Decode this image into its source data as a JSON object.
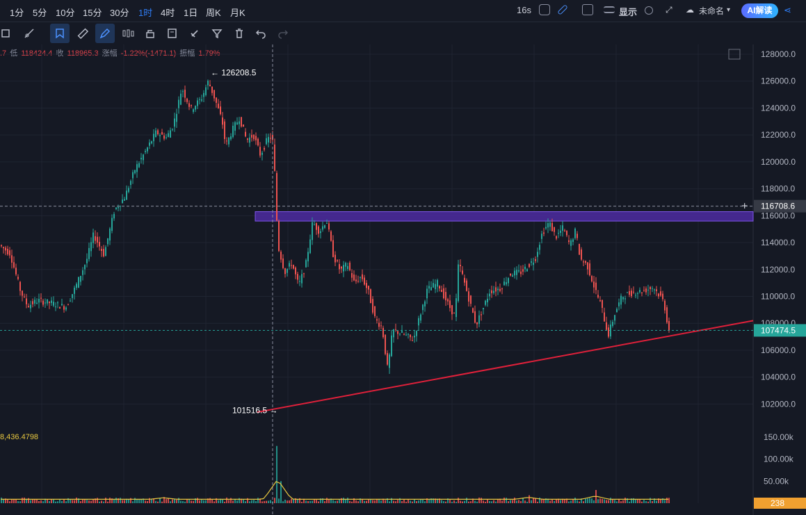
{
  "timeframes": [
    "1分",
    "5分",
    "10分",
    "15分",
    "30分",
    "1时",
    "4时",
    "1日",
    "周K",
    "月K"
  ],
  "active_timeframe": "1时",
  "topbar": {
    "countdown": "16s",
    "display_label": "显示",
    "layout_name": "未命名",
    "ai_button": "AI解读"
  },
  "toolbar": {
    "tools": [
      "layers-icon",
      "line-tool-icon",
      "bookmark-icon",
      "ruler-icon",
      "pen-icon",
      "candles-icon",
      "lock-icon",
      "edit-icon",
      "magnet-icon",
      "filter-icon",
      "trash-icon",
      "undo-icon",
      "redo-icon"
    ],
    "active_tools": [
      "bookmark-icon",
      "pen-icon"
    ]
  },
  "ohlc": {
    "open_fragment": ".7",
    "low_label": "低",
    "low_value": "118424.4",
    "close_label": "收",
    "close_value": "118965.3",
    "change_label": "涨幅",
    "change_value": "-1.22%(-1471.1)",
    "amplitude_label": "振幅",
    "amplitude_value": "1.79%"
  },
  "colors": {
    "background": "#151924",
    "up": "#26a69a",
    "down": "#ef5350",
    "trendline": "#e0203a",
    "zone_fill": "#4a2a9a",
    "zone_border": "#8a5cff",
    "price_tag": "#26a69a",
    "volume_tag": "#f0a030",
    "ma_yellow": "#e8c840"
  },
  "chart_data": {
    "type": "candlestick",
    "y_axis_ticks": [
      128000.0,
      126000.0,
      124000.0,
      122000.0,
      120000.0,
      118000.0,
      116000.0,
      114000.0,
      112000.0,
      110000.0,
      108000.0,
      106000.0,
      104000.0,
      102000.0
    ],
    "y_axis_labels": [
      "128000.0",
      "126000.0",
      "124000.0",
      "122000.0",
      "120000.0",
      "118000.0",
      "116000.0",
      "114000.0",
      "112000.0",
      "110000.0",
      "108000.0",
      "106000.0",
      "104000.0",
      "102000.0"
    ],
    "ylim": [
      101000,
      129000
    ],
    "price_path": [
      [
        0,
        113800
      ],
      [
        15,
        113200
      ],
      [
        30,
        110400
      ],
      [
        40,
        109300
      ],
      [
        55,
        109700
      ],
      [
        75,
        109500
      ],
      [
        95,
        109200
      ],
      [
        110,
        110800
      ],
      [
        125,
        112700
      ],
      [
        135,
        114600
      ],
      [
        150,
        113100
      ],
      [
        165,
        116400
      ],
      [
        180,
        117400
      ],
      [
        195,
        119500
      ],
      [
        210,
        120800
      ],
      [
        225,
        122200
      ],
      [
        240,
        121800
      ],
      [
        250,
        122800
      ],
      [
        262,
        125500
      ],
      [
        275,
        123900
      ],
      [
        290,
        124700
      ],
      [
        300,
        126000
      ],
      [
        310,
        124600
      ],
      [
        320,
        123000
      ],
      [
        325,
        121200
      ],
      [
        335,
        122400
      ],
      [
        345,
        123300
      ],
      [
        355,
        121600
      ],
      [
        365,
        122000
      ],
      [
        375,
        120500
      ],
      [
        385,
        121700
      ],
      [
        392,
        121900
      ],
      [
        396,
        118800
      ],
      [
        400,
        113800
      ],
      [
        410,
        111800
      ],
      [
        420,
        112500
      ],
      [
        430,
        110800
      ],
      [
        440,
        112300
      ],
      [
        450,
        115500
      ],
      [
        460,
        114800
      ],
      [
        470,
        115700
      ],
      [
        480,
        113000
      ],
      [
        490,
        111900
      ],
      [
        500,
        112400
      ],
      [
        510,
        111000
      ],
      [
        520,
        111500
      ],
      [
        530,
        110400
      ],
      [
        540,
        108300
      ],
      [
        550,
        107700
      ],
      [
        558,
        104500
      ],
      [
        565,
        107500
      ],
      [
        580,
        107200
      ],
      [
        595,
        106800
      ],
      [
        605,
        108700
      ],
      [
        615,
        110500
      ],
      [
        630,
        111000
      ],
      [
        645,
        109400
      ],
      [
        655,
        108500
      ],
      [
        660,
        112600
      ],
      [
        670,
        110700
      ],
      [
        685,
        107900
      ],
      [
        695,
        109100
      ],
      [
        705,
        110400
      ],
      [
        720,
        110600
      ],
      [
        735,
        111700
      ],
      [
        750,
        111800
      ],
      [
        770,
        112800
      ],
      [
        780,
        114700
      ],
      [
        790,
        115500
      ],
      [
        800,
        114400
      ],
      [
        810,
        115100
      ],
      [
        820,
        113800
      ],
      [
        828,
        114900
      ],
      [
        835,
        112800
      ],
      [
        845,
        112300
      ],
      [
        855,
        110700
      ],
      [
        865,
        109300
      ],
      [
        875,
        107100
      ],
      [
        885,
        108800
      ],
      [
        895,
        110000
      ],
      [
        910,
        110300
      ],
      [
        925,
        110400
      ],
      [
        940,
        110700
      ],
      [
        950,
        110000
      ],
      [
        955,
        109600
      ],
      [
        962,
        107500
      ]
    ],
    "volume_ylabels": [
      "150.00k",
      "100.00k",
      "50.00k"
    ],
    "volume_max": 170000,
    "volume_spikes": [
      [
        398,
        130000
      ],
      [
        402,
        50000
      ],
      [
        856,
        30000
      ],
      [
        760,
        18000
      ],
      [
        235,
        14000
      ]
    ],
    "volume_base": 8000,
    "annotations": {
      "high_label": "126208.5",
      "low_label": "101516.5"
    },
    "resistance_zone": [
      115600,
      116300
    ],
    "trendline": [
      [
        370,
        101400
      ],
      [
        1083,
        108200
      ]
    ],
    "crosshair_price": "116708.6",
    "crosshair_value": 116708.6,
    "crosshair_x": 392,
    "last_price": "107474.5",
    "last_price_value": 107474.5,
    "volume_ma_value": "8,436.4798",
    "last_volume": "238"
  }
}
